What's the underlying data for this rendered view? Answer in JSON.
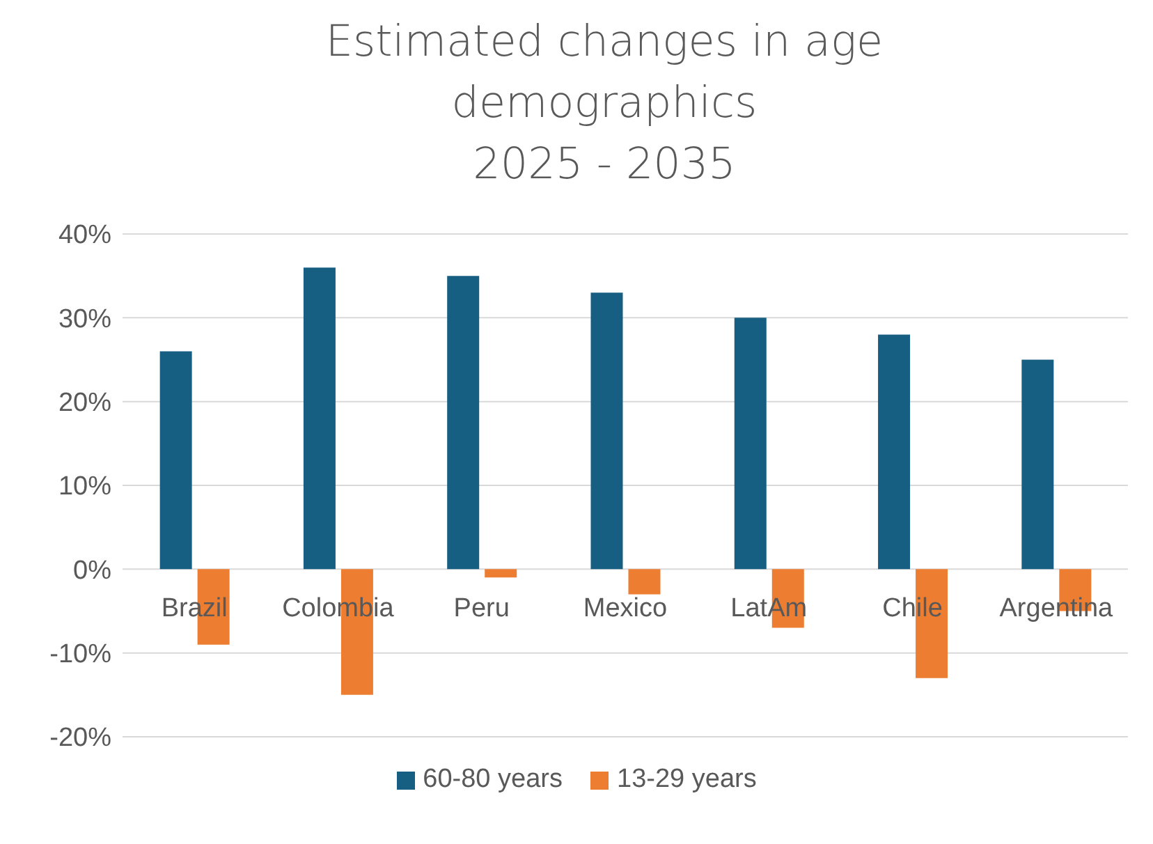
{
  "chart_data": {
    "type": "bar",
    "title": "Estimated changes in age\ndemographics\n2025 - 2035",
    "categories": [
      "Brazil",
      "Colombia",
      "Peru",
      "Mexico",
      "LatAm",
      "Chile",
      "Argentina"
    ],
    "series": [
      {
        "name": "60-80 years",
        "color": "#175f82",
        "values": [
          26,
          36,
          35,
          33,
          30,
          28,
          25
        ]
      },
      {
        "name": "13-29 years",
        "color": "#ed7d31",
        "values": [
          -9,
          -15,
          -1,
          -3,
          -7,
          -13,
          -5
        ]
      }
    ],
    "ylim": [
      -20,
      40
    ],
    "yticks": [
      {
        "value": -20,
        "label": "-20%"
      },
      {
        "value": -10,
        "label": "-10%"
      },
      {
        "value": 0,
        "label": "0%"
      },
      {
        "value": 10,
        "label": "10%"
      },
      {
        "value": 20,
        "label": "20%"
      },
      {
        "value": 30,
        "label": "30%"
      },
      {
        "value": 40,
        "label": "40%"
      }
    ],
    "grid": "y",
    "legend": "bottom"
  }
}
